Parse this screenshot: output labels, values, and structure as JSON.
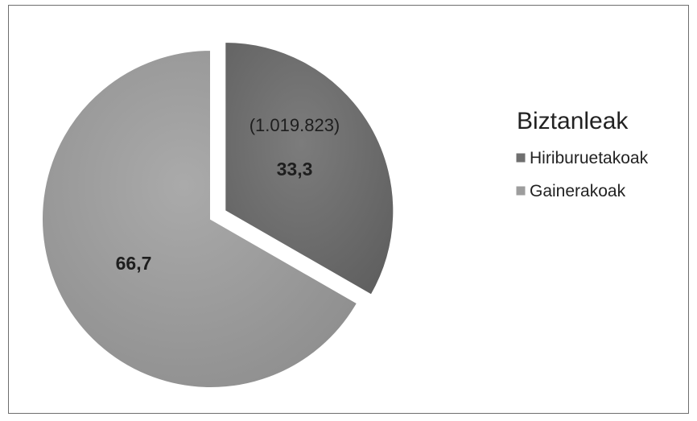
{
  "chart_data": {
    "type": "pie",
    "legend_title": "Biztanleak",
    "legend_position": "right",
    "slices": [
      {
        "label": "Hiriburuetakoak",
        "value": 33.3,
        "value_label": "33,3",
        "note": "(1.019.823)",
        "color": "#6f6f6f",
        "exploded": true
      },
      {
        "label": "Gainerakoak",
        "value": 66.7,
        "value_label": "66,7",
        "note": "",
        "color": "#9d9d9d",
        "exploded": false
      }
    ]
  }
}
